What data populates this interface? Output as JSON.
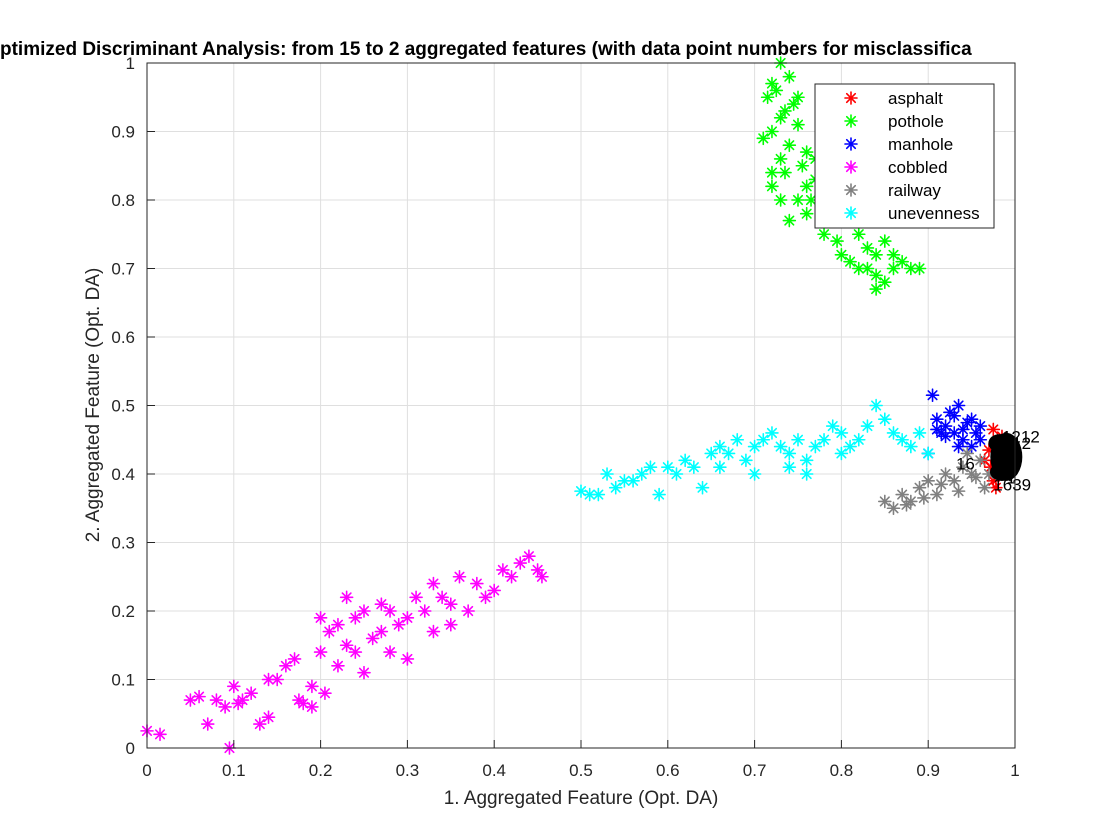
{
  "chart_data": {
    "type": "scatter",
    "title": "ptimized Discriminant Analysis: from 15 to 2 aggregated features (with data point numbers for misclassifica",
    "xlabel": "1. Aggregated Feature (Opt. DA)",
    "ylabel": "2. Aggregated Feature (Opt. DA)",
    "xlim": [
      0,
      1
    ],
    "ylim": [
      0,
      1
    ],
    "xticks": [
      "0",
      "0.1",
      "0.2",
      "0.3",
      "0.4",
      "0.5",
      "0.6",
      "0.7",
      "0.8",
      "0.9",
      "1"
    ],
    "yticks": [
      "0",
      "0.1",
      "0.2",
      "0.3",
      "0.4",
      "0.5",
      "0.6",
      "0.7",
      "0.8",
      "0.9",
      "1"
    ],
    "grid": true,
    "legend_position": "top-right",
    "marker": "*",
    "series": [
      {
        "name": "asphalt",
        "color": "#ff0000",
        "points": [
          [
            0.975,
            0.465
          ],
          [
            0.972,
            0.41
          ],
          [
            0.978,
            0.38
          ],
          [
            0.985,
            0.43
          ],
          [
            0.98,
            0.4
          ],
          [
            0.99,
            0.445
          ],
          [
            0.975,
            0.39
          ],
          [
            0.965,
            0.42
          ],
          [
            0.985,
            0.455
          ],
          [
            0.97,
            0.435
          ]
        ]
      },
      {
        "name": "pothole",
        "color": "#00ff00",
        "points": [
          [
            0.73,
            1.0
          ],
          [
            0.72,
            0.97
          ],
          [
            0.715,
            0.95
          ],
          [
            0.725,
            0.96
          ],
          [
            0.735,
            0.93
          ],
          [
            0.72,
            0.9
          ],
          [
            0.74,
            0.88
          ],
          [
            0.73,
            0.92
          ],
          [
            0.75,
            0.91
          ],
          [
            0.745,
            0.94
          ],
          [
            0.76,
            0.87
          ],
          [
            0.755,
            0.85
          ],
          [
            0.735,
            0.84
          ],
          [
            0.72,
            0.82
          ],
          [
            0.75,
            0.8
          ],
          [
            0.77,
            0.83
          ],
          [
            0.78,
            0.81
          ],
          [
            0.76,
            0.78
          ],
          [
            0.79,
            0.79
          ],
          [
            0.8,
            0.77
          ],
          [
            0.73,
            0.8
          ],
          [
            0.74,
            0.77
          ],
          [
            0.71,
            0.89
          ],
          [
            0.77,
            0.86
          ],
          [
            0.78,
            0.75
          ],
          [
            0.81,
            0.78
          ],
          [
            0.82,
            0.75
          ],
          [
            0.83,
            0.73
          ],
          [
            0.81,
            0.71
          ],
          [
            0.8,
            0.72
          ],
          [
            0.84,
            0.72
          ],
          [
            0.85,
            0.74
          ],
          [
            0.86,
            0.7
          ],
          [
            0.85,
            0.68
          ],
          [
            0.84,
            0.69
          ],
          [
            0.83,
            0.7
          ],
          [
            0.87,
            0.71
          ],
          [
            0.88,
            0.7
          ],
          [
            0.86,
            0.72
          ],
          [
            0.89,
            0.7
          ],
          [
            0.82,
            0.7
          ],
          [
            0.84,
            0.67
          ],
          [
            0.79,
            0.84
          ],
          [
            0.76,
            0.82
          ],
          [
            0.72,
            0.84
          ],
          [
            0.75,
            0.95
          ],
          [
            0.74,
            0.98
          ],
          [
            0.73,
            0.86
          ],
          [
            0.765,
            0.8
          ],
          [
            0.795,
            0.74
          ]
        ]
      },
      {
        "name": "manhole",
        "color": "#0000ff",
        "points": [
          [
            0.905,
            0.515
          ],
          [
            0.935,
            0.5
          ],
          [
            0.9,
            0.43
          ],
          [
            0.92,
            0.47
          ],
          [
            0.93,
            0.46
          ],
          [
            0.95,
            0.48
          ],
          [
            0.96,
            0.47
          ],
          [
            0.91,
            0.48
          ],
          [
            0.94,
            0.45
          ],
          [
            0.925,
            0.49
          ],
          [
            0.955,
            0.46
          ],
          [
            0.945,
            0.475
          ],
          [
            0.915,
            0.46
          ],
          [
            0.935,
            0.44
          ],
          [
            0.96,
            0.45
          ],
          [
            0.95,
            0.44
          ],
          [
            0.91,
            0.465
          ],
          [
            0.93,
            0.485
          ],
          [
            0.94,
            0.465
          ],
          [
            0.92,
            0.455
          ]
        ]
      },
      {
        "name": "cobbled",
        "color": "#ff00ff",
        "points": [
          [
            0,
            0.025
          ],
          [
            0.015,
            0.02
          ],
          [
            0.05,
            0.07
          ],
          [
            0.06,
            0.075
          ],
          [
            0.07,
            0.035
          ],
          [
            0.08,
            0.07
          ],
          [
            0.09,
            0.06
          ],
          [
            0.095,
            0.0
          ],
          [
            0.1,
            0.09
          ],
          [
            0.105,
            0.065
          ],
          [
            0.12,
            0.08
          ],
          [
            0.13,
            0.035
          ],
          [
            0.14,
            0.045
          ],
          [
            0.15,
            0.1
          ],
          [
            0.16,
            0.12
          ],
          [
            0.17,
            0.13
          ],
          [
            0.175,
            0.07
          ],
          [
            0.18,
            0.065
          ],
          [
            0.19,
            0.06
          ],
          [
            0.2,
            0.14
          ],
          [
            0.205,
            0.08
          ],
          [
            0.21,
            0.17
          ],
          [
            0.22,
            0.18
          ],
          [
            0.23,
            0.15
          ],
          [
            0.24,
            0.19
          ],
          [
            0.25,
            0.2
          ],
          [
            0.26,
            0.16
          ],
          [
            0.27,
            0.21
          ],
          [
            0.28,
            0.2
          ],
          [
            0.29,
            0.18
          ],
          [
            0.3,
            0.19
          ],
          [
            0.31,
            0.22
          ],
          [
            0.32,
            0.2
          ],
          [
            0.33,
            0.24
          ],
          [
            0.34,
            0.22
          ],
          [
            0.35,
            0.21
          ],
          [
            0.36,
            0.25
          ],
          [
            0.37,
            0.2
          ],
          [
            0.38,
            0.24
          ],
          [
            0.39,
            0.22
          ],
          [
            0.4,
            0.23
          ],
          [
            0.41,
            0.26
          ],
          [
            0.42,
            0.25
          ],
          [
            0.43,
            0.27
          ],
          [
            0.44,
            0.28
          ],
          [
            0.45,
            0.26
          ],
          [
            0.455,
            0.25
          ],
          [
            0.3,
            0.13
          ],
          [
            0.28,
            0.14
          ],
          [
            0.25,
            0.11
          ],
          [
            0.22,
            0.12
          ],
          [
            0.19,
            0.09
          ],
          [
            0.35,
            0.18
          ],
          [
            0.27,
            0.17
          ],
          [
            0.24,
            0.14
          ],
          [
            0.33,
            0.17
          ],
          [
            0.14,
            0.1
          ],
          [
            0.11,
            0.07
          ],
          [
            0.2,
            0.19
          ],
          [
            0.23,
            0.22
          ]
        ]
      },
      {
        "name": "railway",
        "color": "#808080",
        "points": [
          [
            0.85,
            0.36
          ],
          [
            0.86,
            0.35
          ],
          [
            0.87,
            0.37
          ],
          [
            0.88,
            0.36
          ],
          [
            0.89,
            0.38
          ],
          [
            0.9,
            0.39
          ],
          [
            0.91,
            0.37
          ],
          [
            0.92,
            0.4
          ],
          [
            0.93,
            0.39
          ],
          [
            0.94,
            0.41
          ],
          [
            0.95,
            0.4
          ],
          [
            0.96,
            0.42
          ],
          [
            0.97,
            0.4
          ],
          [
            0.875,
            0.355
          ],
          [
            0.895,
            0.365
          ],
          [
            0.915,
            0.385
          ],
          [
            0.935,
            0.375
          ],
          [
            0.955,
            0.395
          ],
          [
            0.965,
            0.38
          ],
          [
            0.945,
            0.43
          ]
        ]
      },
      {
        "name": "unevenness",
        "color": "#00ffff",
        "points": [
          [
            0.5,
            0.375
          ],
          [
            0.51,
            0.37
          ],
          [
            0.52,
            0.37
          ],
          [
            0.53,
            0.4
          ],
          [
            0.54,
            0.38
          ],
          [
            0.55,
            0.39
          ],
          [
            0.56,
            0.39
          ],
          [
            0.57,
            0.4
          ],
          [
            0.58,
            0.41
          ],
          [
            0.59,
            0.37
          ],
          [
            0.6,
            0.41
          ],
          [
            0.61,
            0.4
          ],
          [
            0.62,
            0.42
          ],
          [
            0.63,
            0.41
          ],
          [
            0.64,
            0.38
          ],
          [
            0.65,
            0.43
          ],
          [
            0.66,
            0.44
          ],
          [
            0.67,
            0.43
          ],
          [
            0.68,
            0.45
          ],
          [
            0.69,
            0.42
          ],
          [
            0.7,
            0.44
          ],
          [
            0.71,
            0.45
          ],
          [
            0.72,
            0.46
          ],
          [
            0.73,
            0.44
          ],
          [
            0.74,
            0.43
          ],
          [
            0.75,
            0.45
          ],
          [
            0.76,
            0.42
          ],
          [
            0.77,
            0.44
          ],
          [
            0.78,
            0.45
          ],
          [
            0.79,
            0.47
          ],
          [
            0.8,
            0.46
          ],
          [
            0.81,
            0.44
          ],
          [
            0.82,
            0.45
          ],
          [
            0.83,
            0.47
          ],
          [
            0.84,
            0.5
          ],
          [
            0.85,
            0.48
          ],
          [
            0.86,
            0.46
          ],
          [
            0.87,
            0.45
          ],
          [
            0.88,
            0.44
          ],
          [
            0.89,
            0.46
          ],
          [
            0.9,
            0.43
          ],
          [
            0.76,
            0.4
          ],
          [
            0.7,
            0.4
          ],
          [
            0.66,
            0.41
          ],
          [
            0.74,
            0.41
          ],
          [
            0.8,
            0.43
          ]
        ]
      }
    ],
    "misclassified_labels": [
      "1212",
      "1212",
      "16",
      "1",
      "1",
      "1",
      "1",
      "1639"
    ]
  }
}
